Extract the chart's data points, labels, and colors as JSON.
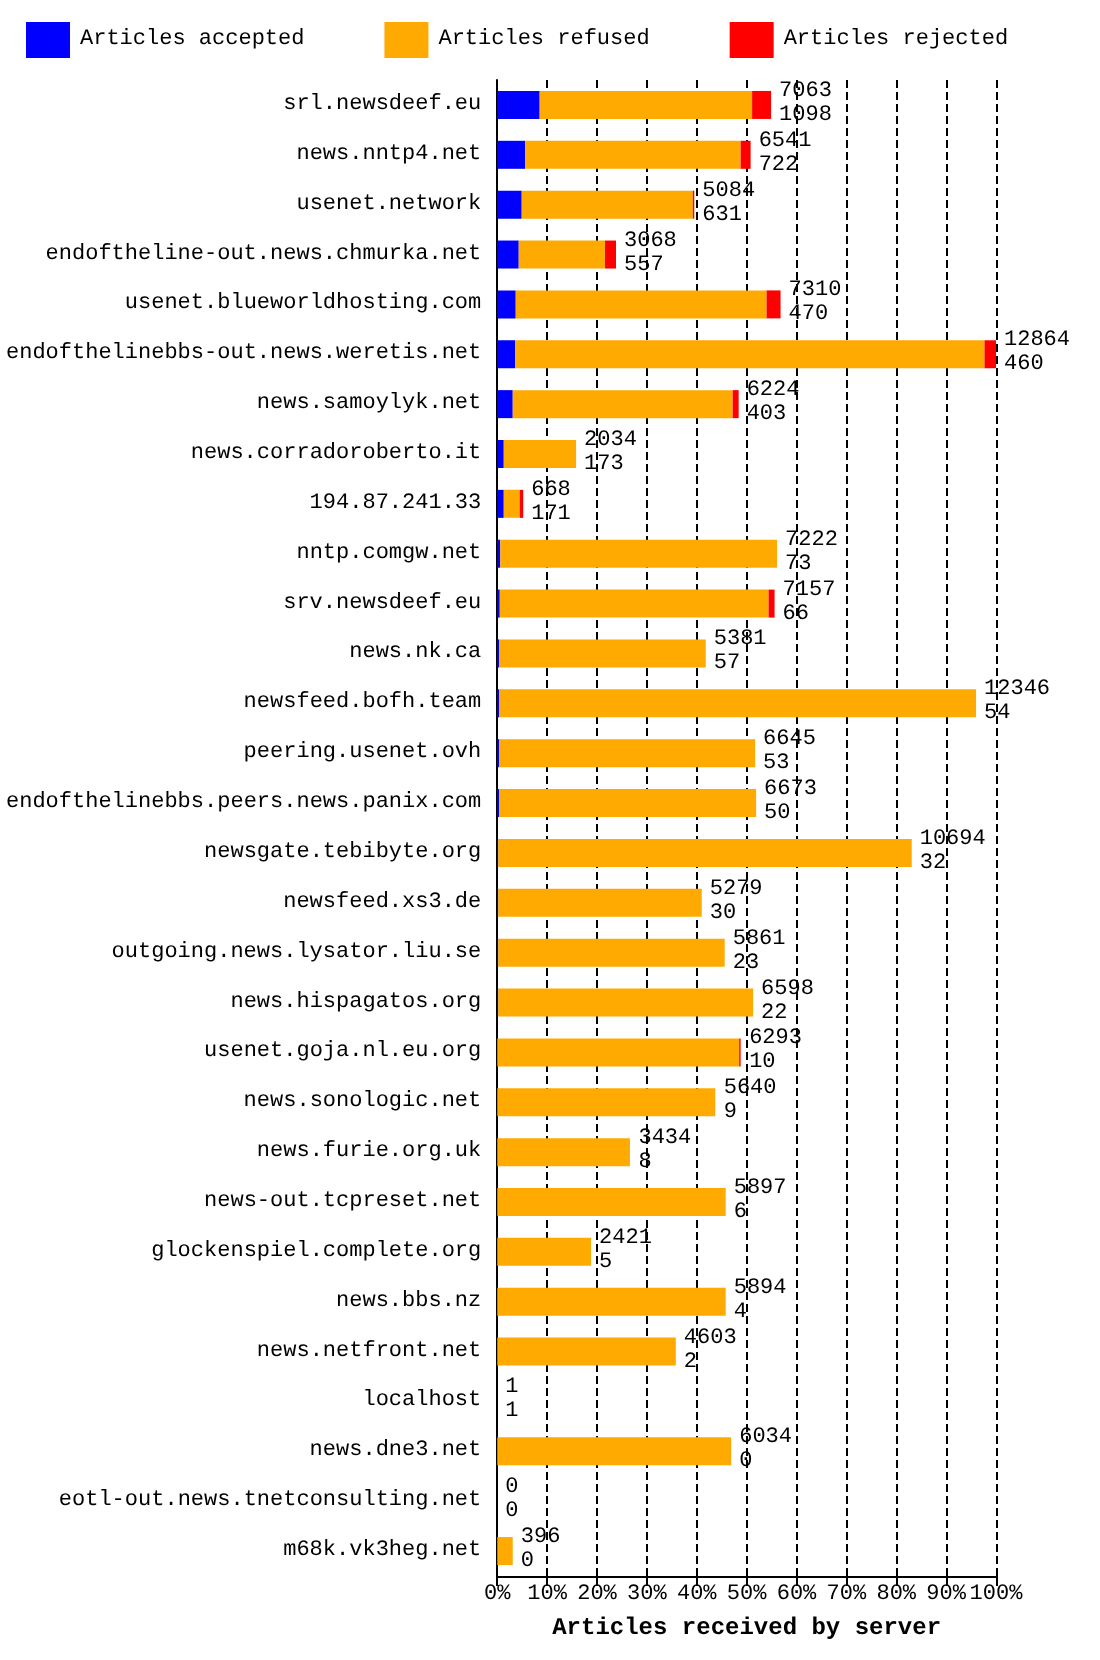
{
  "chart_data": {
    "type": "bar",
    "orientation": "horizontal",
    "stacked": true,
    "xlabel": "Articles received by server",
    "categories": [
      "srl.newsdeef.eu",
      "news.nntp4.net",
      "usenet.network",
      "endoftheline-out.news.chmurka.net",
      "usenet.blueworldhosting.com",
      "endofthelinebbs-out.news.weretis.net",
      "news.samoylyk.net",
      "news.corradoroberto.it",
      "194.87.241.33",
      "nntp.comgw.net",
      "srv.newsdeef.eu",
      "news.nk.ca",
      "newsfeed.bofh.team",
      "peering.usenet.ovh",
      "endofthelinebbs.peers.news.panix.com",
      "newsgate.tebibyte.org",
      "newsfeed.xs3.de",
      "outgoing.news.lysator.liu.se",
      "news.hispagatos.org",
      "usenet.goja.nl.eu.org",
      "news.sonologic.net",
      "news.furie.org.uk",
      "news-out.tcpreset.net",
      "glockenspiel.complete.org",
      "news.bbs.nz",
      "news.netfront.net",
      "localhost",
      "news.dne3.net",
      "eotl-out.news.tnetconsulting.net",
      "m68k.vk3heg.net"
    ],
    "series": [
      {
        "name": "Articles accepted",
        "color": "#0000ff",
        "values": [
          8.5,
          5.6,
          4.9,
          4.3,
          3.7,
          3.6,
          3.1,
          1.3,
          1.3,
          0.6,
          0.5,
          0.4,
          0.4,
          0.4,
          0.4,
          0.2,
          0.2,
          0.2,
          0.2,
          null,
          null,
          null,
          0,
          0,
          0,
          0,
          0,
          0,
          0,
          0
        ]
      },
      {
        "name": "Articles refused",
        "color": "#ffaa00",
        "values": [
          42.6,
          43.2,
          34.3,
          17.3,
          50.3,
          94.1,
          44.1,
          14.5,
          3.2,
          55.5,
          53.9,
          41.4,
          95.6,
          51.3,
          51.5,
          82.9,
          40.8,
          45.4,
          51.1,
          48.5,
          43.7,
          26.6,
          45.8,
          18.8,
          45.8,
          35.8,
          0,
          46.9,
          0,
          3.1
        ]
      },
      {
        "name": "Articles rejected",
        "color": "#ff0000",
        "values": [
          3.8,
          2.0,
          0.3,
          2.2,
          2.8,
          2.3,
          1.2,
          0,
          0.7,
          0,
          1.2,
          0,
          0,
          0,
          0,
          0,
          0,
          0,
          0,
          0.3,
          0,
          0,
          0,
          0,
          0,
          0,
          0,
          0,
          0,
          0
        ]
      }
    ],
    "annotations": [
      {
        "text": "7063",
        "x": 54.9,
        "y": "srl.newsdeef.eu"
      },
      {
        "text": "1098",
        "x": 54.9,
        "y": "srl.newsdeef.eu"
      },
      {
        "text": "6541",
        "x": 50.8,
        "y": "news.nntp4.net"
      },
      {
        "text": "722",
        "x": 50.8,
        "y": "news.nntp4.net"
      },
      {
        "text": "5084",
        "x": 39.5,
        "y": "usenet.network"
      },
      {
        "text": "631",
        "x": 39.5,
        "y": "usenet.network"
      },
      {
        "text": "3068",
        "x": 23.8,
        "y": "endoftheline-out.news.chmurka.net"
      },
      {
        "text": "557",
        "x": 23.8,
        "y": "endoftheline-out.news.chmurka.net"
      },
      {
        "text": "7310",
        "x": 56.8,
        "y": "usenet.blueworldhosting.com"
      },
      {
        "text": "470",
        "x": 56.8,
        "y": "usenet.blueworldhosting.com"
      },
      {
        "text": "12864",
        "x": 100,
        "y": "endofthelinebbs-out.news.weretis.net"
      },
      {
        "text": "460",
        "x": 100,
        "y": "endofthelinebbs-out.news.weretis.net"
      },
      {
        "text": "6224",
        "x": 48.4,
        "y": "news.samoylyk.net"
      },
      {
        "text": "403",
        "x": 48.4,
        "y": "news.samoylyk.net"
      },
      {
        "text": "2034",
        "x": 15.8,
        "y": "news.corradoroberto.it"
      },
      {
        "text": "173",
        "x": 15.8,
        "y": "news.corradoroberto.it"
      },
      {
        "text": "668",
        "x": 5.2,
        "y": "194.87.241.33"
      },
      {
        "text": "171",
        "x": 5.2,
        "y": "194.87.241.33"
      },
      {
        "text": "7222",
        "x": 56.1,
        "y": "nntp.comgw.net"
      },
      {
        "text": "73",
        "x": 56.1,
        "y": "nntp.comgw.net"
      },
      {
        "text": "7157",
        "x": 55.6,
        "y": "srv.newsdeef.eu"
      },
      {
        "text": "66",
        "x": 55.6,
        "y": "srv.newsdeef.eu"
      },
      {
        "text": "5381",
        "x": 41.8,
        "y": "news.nk.ca"
      },
      {
        "text": "57",
        "x": 41.8,
        "y": "news.nk.ca"
      },
      {
        "text": "12346",
        "x": 96.0,
        "y": "newsfeed.bofh.team"
      },
      {
        "text": "54",
        "x": 96.0,
        "y": "newsfeed.bofh.team"
      },
      {
        "text": "6645",
        "x": 51.7,
        "y": "peering.usenet.ovh"
      },
      {
        "text": "53",
        "x": 51.7,
        "y": "peering.usenet.ovh"
      },
      {
        "text": "6673",
        "x": 51.9,
        "y": "endofthelinebbs.peers.news.panix.com"
      },
      {
        "text": "50",
        "x": 51.9,
        "y": "endofthelinebbs.peers.news.panix.com"
      },
      {
        "text": "10694",
        "x": 83.1,
        "y": "newsgate.tebibyte.org"
      },
      {
        "text": "32",
        "x": 83.1,
        "y": "newsgate.tebibyte.org"
      },
      {
        "text": "5279",
        "x": 41.0,
        "y": "newsfeed.xs3.de"
      },
      {
        "text": "30",
        "x": 41.0,
        "y": "newsfeed.xs3.de"
      },
      {
        "text": "5861",
        "x": 45.6,
        "y": "outgoing.news.lysator.liu.se"
      },
      {
        "text": "23",
        "x": 45.6,
        "y": "outgoing.news.lysator.liu.se"
      },
      {
        "text": "6598",
        "x": 51.3,
        "y": "news.hispagatos.org"
      },
      {
        "text": "22",
        "x": 51.3,
        "y": "news.hispagatos.org"
      },
      {
        "text": "6293",
        "x": 48.9,
        "y": "usenet.goja.nl.eu.org"
      },
      {
        "text": "10",
        "x": 48.9,
        "y": "usenet.goja.nl.eu.org"
      },
      {
        "text": "5640",
        "x": 43.8,
        "y": "news.sonologic.net"
      },
      {
        "text": "9",
        "x": 43.8,
        "y": "news.sonologic.net"
      },
      {
        "text": "3434",
        "x": 26.7,
        "y": "news.furie.org.uk"
      },
      {
        "text": "8",
        "x": 26.7,
        "y": "news.furie.org.uk"
      },
      {
        "text": "5897",
        "x": 45.8,
        "y": "news-out.tcpreset.net"
      },
      {
        "text": "6",
        "x": 45.8,
        "y": "news-out.tcpreset.net"
      },
      {
        "text": "2421",
        "x": 18.8,
        "y": "glockenspiel.complete.org"
      },
      {
        "text": "5",
        "x": 18.8,
        "y": "glockenspiel.complete.org"
      },
      {
        "text": "5894",
        "x": 45.8,
        "y": "news.bbs.nz"
      },
      {
        "text": "4",
        "x": 45.8,
        "y": "news.bbs.nz"
      },
      {
        "text": "4603",
        "x": 35.8,
        "y": "news.netfront.net"
      },
      {
        "text": "2",
        "x": 35.8,
        "y": "news.netfront.net"
      },
      {
        "text": "1",
        "x": 0,
        "y": "localhost"
      },
      {
        "text": "1",
        "x": 0,
        "y": "localhost"
      },
      {
        "text": "6034",
        "x": 46.9,
        "y": "news.dne3.net"
      },
      {
        "text": "0",
        "x": 46.9,
        "y": "news.dne3.net"
      },
      {
        "text": "0",
        "x": 0,
        "y": "eotl-out.news.tnetconsulting.net"
      },
      {
        "text": "0",
        "x": 0,
        "y": "eotl-out.news.tnetconsulting.net"
      },
      {
        "text": "396",
        "x": 3.1,
        "y": "m68k.vk3heg.net"
      },
      {
        "text": "0",
        "x": 3.1,
        "y": "m68k.vk3heg.net"
      }
    ],
    "xlim": [
      0,
      100
    ],
    "xticks": [
      {
        "value": 0,
        "label": "0%"
      },
      {
        "value": 10,
        "label": "10%"
      },
      {
        "value": 20,
        "label": "20%"
      },
      {
        "value": 30,
        "label": "30%"
      },
      {
        "value": 40,
        "label": "40%"
      },
      {
        "value": 50,
        "label": "50%"
      },
      {
        "value": 60,
        "label": "60%"
      },
      {
        "value": 70,
        "label": "70%"
      },
      {
        "value": 80,
        "label": "80%"
      },
      {
        "value": 90,
        "label": "90%"
      },
      {
        "value": 100,
        "label": "100%"
      }
    ],
    "grid": "x",
    "legend": "top"
  }
}
